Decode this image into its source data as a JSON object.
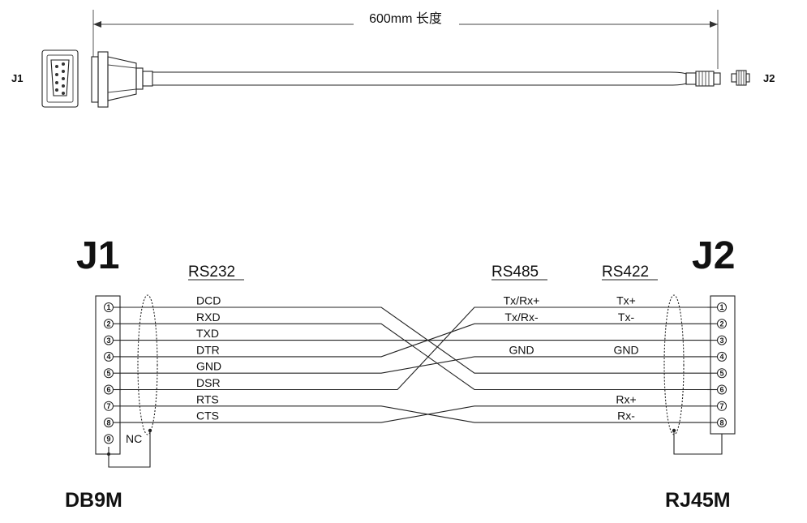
{
  "top": {
    "length_label": "600mm 长度",
    "left_label": "J1",
    "right_label": "J2"
  },
  "diagram": {
    "j1_title": "J1",
    "j2_title": "J2",
    "headers": {
      "rs232": "RS232",
      "rs485": "RS485",
      "rs422": "RS422"
    },
    "rs232_signals": [
      "DCD",
      "RXD",
      "TXD",
      "DTR",
      "GND",
      "DSR",
      "RTS",
      "CTS"
    ],
    "rs485_signals": [
      "Tx/Rx+",
      "Tx/Rx-",
      "",
      "GND",
      "",
      "",
      "",
      ""
    ],
    "rs422_signals": [
      "Tx+",
      "Tx-",
      "",
      "GND",
      "",
      "",
      "Rx+",
      "Rx-"
    ],
    "left_pins": [
      "1",
      "2",
      "3",
      "4",
      "5",
      "6",
      "7",
      "8",
      "9"
    ],
    "right_pins": [
      "1",
      "2",
      "3",
      "4",
      "5",
      "6",
      "7",
      "8"
    ],
    "nc_label": "NC",
    "left_connector": "DB9M",
    "right_connector": "RJ45M"
  },
  "wiring": [
    {
      "from": 1,
      "to": 5
    },
    {
      "from": 2,
      "to": 6
    },
    {
      "from": 3,
      "to": 3
    },
    {
      "from": 4,
      "to": 2
    },
    {
      "from": 5,
      "to": 4
    },
    {
      "from": 6,
      "to": 1
    },
    {
      "from": 7,
      "to": 8
    },
    {
      "from": 8,
      "to": 7
    }
  ]
}
